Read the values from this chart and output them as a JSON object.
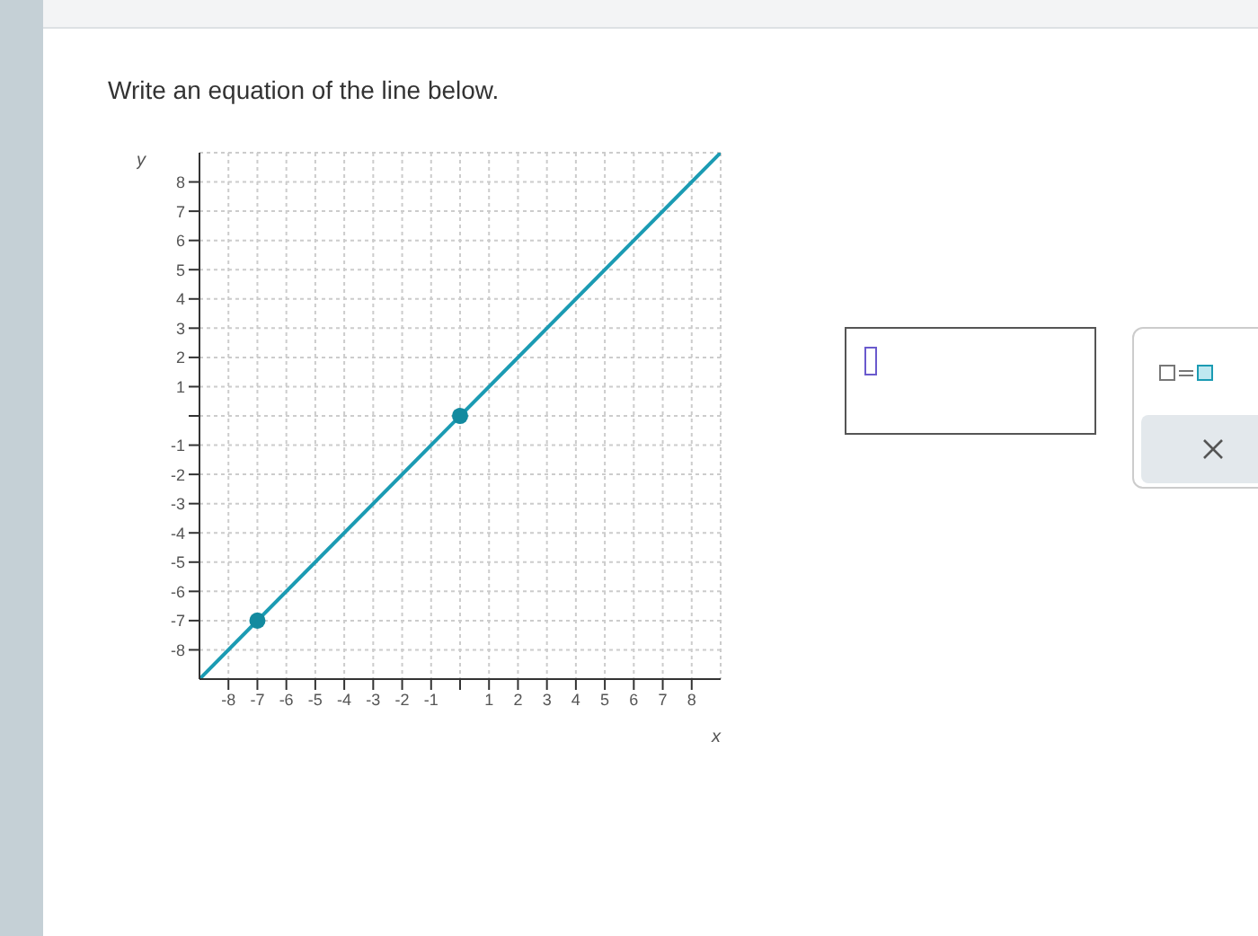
{
  "chart_data": {
    "type": "line",
    "title": "Write an equation of the line below.",
    "xlabel": "x",
    "ylabel": "y",
    "xlim": [
      -9,
      9
    ],
    "ylim": [
      -9,
      9
    ],
    "xticks": [
      -8,
      -7,
      -6,
      -5,
      -4,
      -3,
      -2,
      -1,
      {
        "value": 0,
        "label": null
      },
      1,
      2,
      3,
      4,
      5,
      6,
      7,
      8
    ],
    "yticks": [
      -8,
      -7,
      -6,
      -5,
      -4,
      -3,
      -2,
      -1,
      {
        "value": 0,
        "label": null
      },
      1,
      2,
      3,
      4,
      5,
      6,
      7,
      8
    ],
    "grid": true,
    "series": [
      {
        "x": [
          -9,
          9
        ],
        "values": [
          -9,
          9
        ],
        "color": "#1b9bb3",
        "marker": "none"
      },
      {
        "type": "scatter",
        "x": [
          -7,
          0
        ],
        "values": [
          -7,
          0
        ],
        "color": "#138a9f",
        "marker": "circle"
      }
    ]
  }
}
